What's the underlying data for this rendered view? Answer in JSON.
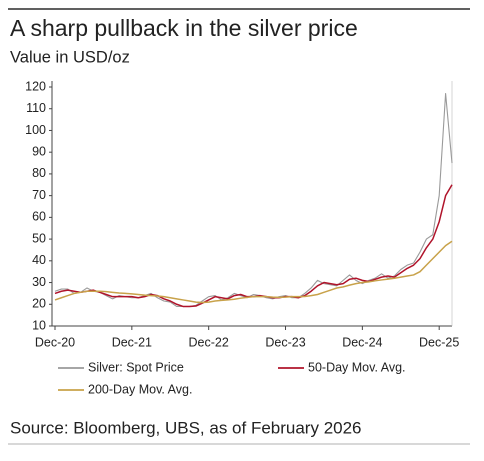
{
  "chart_data": {
    "type": "line",
    "title": "A sharp pullback in the silver price",
    "subtitle": "Value in USD/oz",
    "source": "Source: Bloomberg, UBS, as of February 2026",
    "legend": "bottom",
    "grid": false,
    "categories": [
      "Dec-20",
      null,
      null,
      null,
      null,
      null,
      null,
      null,
      null,
      null,
      null,
      null,
      "Dec-21",
      null,
      null,
      null,
      null,
      null,
      null,
      null,
      null,
      null,
      null,
      null,
      "Dec-22",
      null,
      null,
      null,
      null,
      null,
      null,
      null,
      null,
      null,
      null,
      null,
      "Dec-23",
      null,
      null,
      null,
      null,
      null,
      null,
      null,
      null,
      null,
      null,
      null,
      "Dec-24",
      null,
      null,
      null,
      null,
      null,
      null,
      null,
      null,
      null,
      null,
      null,
      "Dec-25",
      null,
      null
    ],
    "ylim": [
      10,
      120
    ],
    "yticks": [
      10,
      20,
      30,
      40,
      50,
      60,
      70,
      80,
      90,
      100,
      110,
      120
    ],
    "series": [
      {
        "name": "Silver: Spot Price",
        "color": "#9a9a9a",
        "values": [
          26,
          27,
          27,
          25,
          25.5,
          27.5,
          26,
          25.5,
          24,
          22.5,
          24,
          23.5,
          23,
          23,
          24,
          25,
          23,
          21.5,
          21,
          19,
          19,
          19,
          19.5,
          21.5,
          23.5,
          24,
          22,
          23,
          25,
          24,
          23,
          24.5,
          24,
          23,
          22.5,
          23.5,
          24,
          23,
          23,
          25,
          27.5,
          31,
          29.5,
          29,
          28.5,
          31,
          33.5,
          31,
          29.5,
          31,
          32,
          34,
          32,
          33,
          36,
          38,
          39,
          44,
          50,
          52,
          70,
          117,
          85
        ]
      },
      {
        "name": "50-Day Mov. Avg.",
        "color": "#b0142b",
        "values": [
          25,
          26,
          26.5,
          26,
          25.5,
          26,
          26.5,
          25.5,
          24.5,
          23.5,
          23.5,
          23.5,
          23.5,
          23,
          23.5,
          24.5,
          24,
          22.5,
          21.5,
          20,
          19,
          19,
          19.2,
          20.5,
          22,
          23.5,
          23,
          22.5,
          24,
          24.5,
          23.5,
          23.5,
          24,
          23.5,
          23,
          23,
          23.5,
          23.5,
          23,
          24,
          26,
          28.5,
          30,
          29.5,
          29,
          29.5,
          31.5,
          32,
          31,
          30.5,
          31.5,
          32.5,
          33,
          32.5,
          34.5,
          36.5,
          38,
          41,
          46,
          50,
          58,
          70,
          75
        ]
      },
      {
        "name": "200-Day Mov. Avg.",
        "color": "#c8a24a",
        "values": [
          22,
          23,
          24,
          25,
          25.5,
          26,
          26,
          26,
          25.8,
          25.5,
          25.2,
          25,
          24.8,
          24.5,
          24.2,
          24,
          23.8,
          23.5,
          23,
          22.5,
          22,
          21.5,
          21,
          20.8,
          21,
          21.5,
          21.8,
          22,
          22.3,
          22.8,
          23.2,
          23.5,
          23.5,
          23.5,
          23.3,
          23.2,
          23.3,
          23.5,
          23.5,
          23.6,
          24,
          24.5,
          25.5,
          26.5,
          27.5,
          28,
          28.8,
          29.5,
          30,
          30.3,
          30.8,
          31.2,
          31.6,
          32,
          32.5,
          33,
          33.5,
          35,
          38,
          41,
          44,
          47,
          49
        ]
      }
    ]
  }
}
